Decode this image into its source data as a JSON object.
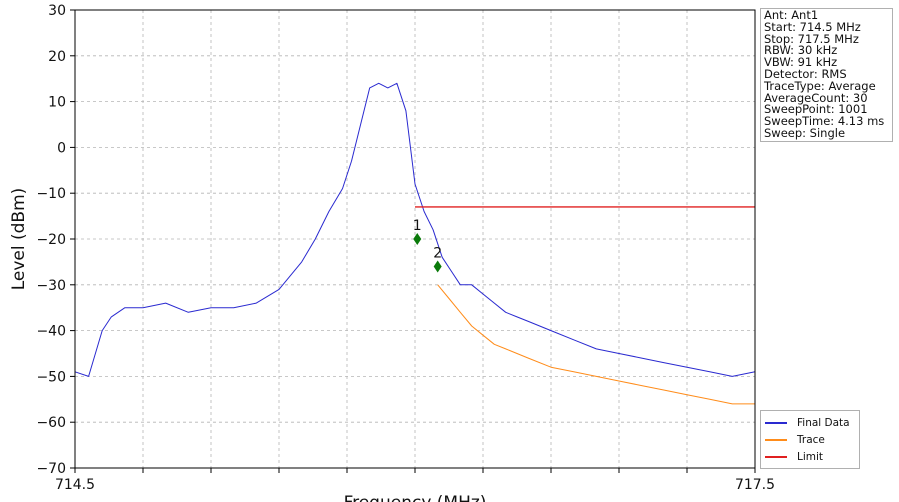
{
  "chart_data": {
    "type": "line",
    "xlabel": "Frequency (MHz)",
    "ylabel": "Level (dBm)",
    "xlim": [
      714.5,
      717.5
    ],
    "ylim": [
      -70,
      30
    ],
    "x_tick_labels": [
      "714.5",
      "717.5"
    ],
    "y_ticks": [
      30,
      20,
      10,
      0,
      -10,
      -20,
      -30,
      -40,
      -50,
      -60,
      -70
    ],
    "grid": true,
    "legend_position": "bottom-right, outside plot",
    "series": [
      {
        "name": "Final Data",
        "color": "#2a2ad0",
        "x": [
          714.5,
          714.56,
          714.62,
          714.66,
          714.72,
          714.8,
          714.9,
          715.0,
          715.1,
          715.2,
          715.3,
          715.4,
          715.5,
          715.56,
          715.62,
          715.68,
          715.72,
          715.76,
          715.8,
          715.84,
          715.88,
          715.92,
          715.96,
          716.0,
          716.04,
          716.08,
          716.12,
          716.16,
          716.2,
          716.25,
          716.3,
          716.35,
          716.4,
          716.45,
          716.5,
          716.6,
          716.7,
          716.8,
          716.9,
          717.0,
          717.1,
          717.2,
          717.3,
          717.4,
          717.5
        ],
        "y": [
          -49,
          -50,
          -40,
          -37,
          -35,
          -35,
          -34,
          -36,
          -35,
          -35,
          -34,
          -31,
          -25,
          -20,
          -14,
          -9,
          -3,
          5,
          13,
          14,
          13,
          14,
          8,
          -8,
          -14,
          -18,
          -24,
          -27,
          -30,
          -30,
          -32,
          -34,
          -36,
          -37,
          -38,
          -40,
          -42,
          -44,
          -45,
          -46,
          -47,
          -48,
          -49,
          -50,
          -49
        ]
      },
      {
        "name": "Trace",
        "color": "#ff8c1a",
        "x": [
          716.1,
          716.15,
          716.2,
          716.25,
          716.3,
          716.35,
          716.4,
          716.45,
          716.5,
          716.6,
          716.7,
          716.8,
          716.9,
          717.0,
          717.1,
          717.2,
          717.3,
          717.4,
          717.5
        ],
        "y": [
          -30,
          -33,
          -36,
          -39,
          -41,
          -43,
          -44,
          -45,
          -46,
          -48,
          -49,
          -50,
          -51,
          -52,
          -53,
          -54,
          -55,
          -56,
          -56
        ]
      },
      {
        "name": "Limit",
        "color": "#e02020",
        "x": [
          716.0,
          717.5
        ],
        "y": [
          -13,
          -13
        ]
      }
    ],
    "markers": [
      {
        "label": "1",
        "x": 716.01,
        "y": -20
      },
      {
        "label": "2",
        "x": 716.1,
        "y": -26
      }
    ],
    "marker_color": "#0a7a0a"
  },
  "info": [
    "Ant: Ant1",
    "Start: 714.5 MHz",
    "Stop: 717.5 MHz",
    "RBW: 30 kHz",
    "VBW: 91 kHz",
    "Detector: RMS",
    "TraceType: Average",
    "AverageCount: 30",
    "SweepPoint: 1001",
    "SweepTime: 4.13 ms",
    "Sweep: Single"
  ]
}
